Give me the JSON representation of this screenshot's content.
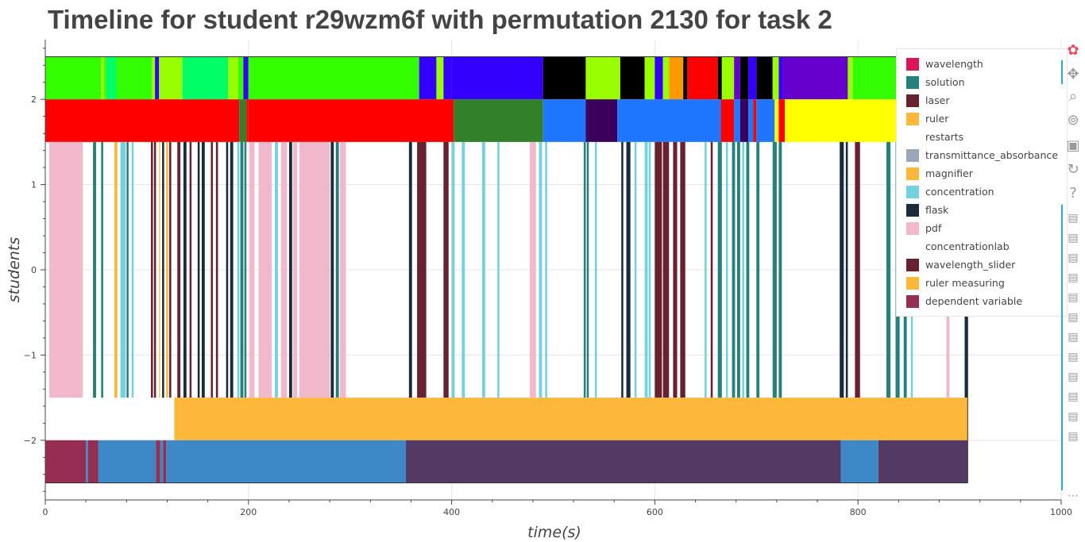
{
  "title": "Timeline for student r29wzm6f with permutation 2130 for task 2",
  "chart_data": {
    "type": "bar",
    "orientation": "horizontal",
    "xlabel": "time(s)",
    "ylabel": "students",
    "xlim": [
      0,
      1000
    ],
    "ylim": [
      -2.7,
      2.7
    ],
    "x_ticks": [
      0,
      200,
      400,
      600,
      800,
      1000
    ],
    "y_ticks": [
      -2,
      -1,
      0,
      1,
      2
    ],
    "grid": true,
    "legend_position": "top-right",
    "rows": [
      {
        "y0": 2.0,
        "y1": 2.5,
        "segments": [
          [
            0,
            55,
            "#33ff00"
          ],
          [
            55,
            58,
            "#99ff00"
          ],
          [
            58,
            60,
            "#33ff00"
          ],
          [
            60,
            70,
            "#00ff66"
          ],
          [
            70,
            90,
            "#33ff00"
          ],
          [
            90,
            105,
            "#33ff00"
          ],
          [
            105,
            108,
            "#99ff00"
          ],
          [
            108,
            112,
            "#3300ff"
          ],
          [
            112,
            115,
            "#99ff00"
          ],
          [
            115,
            135,
            "#99ff00"
          ],
          [
            135,
            180,
            "#00ff66"
          ],
          [
            180,
            190,
            "#99ff00"
          ],
          [
            190,
            195,
            "#33ff00"
          ],
          [
            195,
            200,
            "#3300ff"
          ],
          [
            200,
            368,
            "#33ff00"
          ],
          [
            368,
            385,
            "#3300ff"
          ],
          [
            385,
            392,
            "#99ff00"
          ],
          [
            392,
            400,
            "#3300ff"
          ],
          [
            400,
            490,
            "#3300ff"
          ],
          [
            490,
            532,
            "#000000"
          ],
          [
            532,
            566,
            "#99ff00"
          ],
          [
            566,
            590,
            "#000000"
          ],
          [
            590,
            600,
            "#99ff00"
          ],
          [
            600,
            608,
            "#3300ff"
          ],
          [
            608,
            614,
            "#99ff00"
          ],
          [
            614,
            628,
            "#ff9900"
          ],
          [
            628,
            632,
            "#000000"
          ],
          [
            632,
            662,
            "#ff0000"
          ],
          [
            662,
            666,
            "#000000"
          ],
          [
            666,
            678,
            "#99ff00"
          ],
          [
            678,
            684,
            "#6600cc"
          ],
          [
            684,
            692,
            "#000000"
          ],
          [
            692,
            700,
            "#3300ff"
          ],
          [
            700,
            716,
            "#000000"
          ],
          [
            716,
            722,
            "#99ff00"
          ],
          [
            722,
            726,
            "#3300ff"
          ],
          [
            726,
            790,
            "#6600cc"
          ],
          [
            790,
            795,
            "#99ff00"
          ],
          [
            795,
            808,
            "#33ff00"
          ],
          [
            808,
            842,
            "#33ff00"
          ],
          [
            842,
            860,
            "#ff9900"
          ],
          [
            860,
            870,
            "#000000"
          ],
          [
            870,
            888,
            "#33ff00"
          ],
          [
            888,
            895,
            "#000000"
          ],
          [
            895,
            908,
            "#ff0000"
          ]
        ]
      },
      {
        "y0": 1.5,
        "y1": 2.0,
        "segments": [
          [
            0,
            191,
            "#ff0000"
          ],
          [
            191,
            198,
            "#33802b"
          ],
          [
            198,
            200,
            "#ff0000"
          ],
          [
            200,
            402,
            "#ff0000"
          ],
          [
            402,
            490,
            "#33802b"
          ],
          [
            490,
            532,
            "#1f77ff"
          ],
          [
            532,
            563,
            "#3a005c"
          ],
          [
            563,
            665,
            "#1f77ff"
          ],
          [
            665,
            678,
            "#ff0000"
          ],
          [
            678,
            684,
            "#1f77ff"
          ],
          [
            684,
            692,
            "#3a005c"
          ],
          [
            692,
            697,
            "#1f77ff"
          ],
          [
            697,
            700,
            "#ff0000"
          ],
          [
            700,
            718,
            "#1f77ff"
          ],
          [
            718,
            722,
            "#ffff00"
          ],
          [
            722,
            728,
            "#ff0000"
          ],
          [
            728,
            908,
            "#ffff00"
          ]
        ]
      },
      {
        "y0": -1.5,
        "y1": 1.5,
        "segments": [
          [
            4,
            37,
            "#f0b8ca"
          ],
          [
            47,
            50,
            "#23807a"
          ],
          [
            55,
            57,
            "#23807a"
          ],
          [
            68,
            71,
            "#fdb83c"
          ],
          [
            74,
            79,
            "#74d1de"
          ],
          [
            80,
            82,
            "#23807a"
          ],
          [
            85,
            87,
            "#74d1de"
          ],
          [
            104,
            106,
            "#672131"
          ],
          [
            107,
            109,
            "#672131"
          ],
          [
            112,
            113,
            "#fdb83c"
          ],
          [
            115,
            117,
            "#1a2c3c"
          ],
          [
            119,
            121,
            "#fdb83c"
          ],
          [
            122,
            124,
            "#672131"
          ],
          [
            130,
            133,
            "#672131"
          ],
          [
            136,
            139,
            "#1a2c3c"
          ],
          [
            142,
            144,
            "#672131"
          ],
          [
            150,
            152,
            "#1a2c3c"
          ],
          [
            154,
            157,
            "#1a2c3c"
          ],
          [
            163,
            165,
            "#672131"
          ],
          [
            168,
            170,
            "#672131"
          ],
          [
            178,
            180,
            "#1a2c3c"
          ],
          [
            182,
            185,
            "#1a2c3c"
          ],
          [
            189,
            191,
            "#74d1de"
          ],
          [
            192,
            195,
            "#23807a"
          ],
          [
            196,
            198,
            "#23807a"
          ],
          [
            201,
            206,
            "#f0b8ca"
          ],
          [
            210,
            223,
            "#f0b8ca"
          ],
          [
            226,
            229,
            "#74d1de"
          ],
          [
            232,
            238,
            "#f0b8ca"
          ],
          [
            240,
            243,
            "#1a2c3c"
          ],
          [
            244,
            248,
            "#f0b8ca"
          ],
          [
            250,
            280,
            "#f0b8ca"
          ],
          [
            281,
            284,
            "#1a2c3c"
          ],
          [
            286,
            289,
            "#23807a"
          ],
          [
            290,
            296,
            "#f0b8ca"
          ],
          [
            358,
            361,
            "#1a2c3c"
          ],
          [
            366,
            375,
            "#672131"
          ],
          [
            392,
            397,
            "#672131"
          ],
          [
            400,
            403,
            "#74d1de"
          ],
          [
            410,
            413,
            "#74d1de"
          ],
          [
            430,
            433,
            "#74d1de"
          ],
          [
            445,
            447,
            "#74d1de"
          ],
          [
            477,
            483,
            "#f0b8ca"
          ],
          [
            486,
            489,
            "#74d1de"
          ],
          [
            492,
            494,
            "#74d1de"
          ],
          [
            530,
            532,
            "#23807a"
          ],
          [
            533,
            535,
            "#23807a"
          ],
          [
            541,
            543,
            "#74d1de"
          ],
          [
            567,
            569,
            "#1a2c3c"
          ],
          [
            572,
            576,
            "#1a2c3c"
          ],
          [
            580,
            582,
            "#74d1de"
          ],
          [
            590,
            593,
            "#74d1de"
          ],
          [
            594,
            596,
            "#74d1de"
          ],
          [
            600,
            607,
            "#672131"
          ],
          [
            608,
            614,
            "#672131"
          ],
          [
            618,
            622,
            "#672131"
          ],
          [
            625,
            630,
            "#672131"
          ],
          [
            649,
            651,
            "#74d1de"
          ],
          [
            655,
            657,
            "#672131"
          ],
          [
            662,
            666,
            "#23807a"
          ],
          [
            670,
            672,
            "#74d1de"
          ],
          [
            676,
            679,
            "#23807a"
          ],
          [
            681,
            684,
            "#23807a"
          ],
          [
            686,
            688,
            "#74d1de"
          ],
          [
            690,
            693,
            "#23807a"
          ],
          [
            700,
            703,
            "#23807a"
          ],
          [
            716,
            720,
            "#23807a"
          ],
          [
            722,
            725,
            "#23807a"
          ],
          [
            782,
            786,
            "#1a2c3c"
          ],
          [
            788,
            790,
            "#1a2c3c"
          ],
          [
            797,
            802,
            "#672131"
          ],
          [
            828,
            832,
            "#23807a"
          ],
          [
            837,
            841,
            "#23807a"
          ],
          [
            845,
            848,
            "#23807a"
          ],
          [
            852,
            854,
            "#74d1de"
          ],
          [
            887,
            890,
            "#f0b8ca"
          ],
          [
            905,
            908,
            "#1a2c3c"
          ]
        ]
      },
      {
        "y0": -2.0,
        "y1": -1.5,
        "segments": [
          [
            127,
            908,
            "#fdb83c"
          ]
        ]
      },
      {
        "y0": -2.5,
        "y1": -2.0,
        "segments": [
          [
            0,
            40,
            "#962e54"
          ],
          [
            40,
            42,
            "#3f88c7"
          ],
          [
            42,
            52,
            "#962e54"
          ],
          [
            52,
            109,
            "#3f88c7"
          ],
          [
            109,
            113,
            "#962e54"
          ],
          [
            113,
            116,
            "#3f88c7"
          ],
          [
            116,
            119,
            "#962e54"
          ],
          [
            119,
            355,
            "#3f88c7"
          ],
          [
            355,
            783,
            "#523a64"
          ],
          [
            783,
            820,
            "#3f88c7"
          ],
          [
            820,
            908,
            "#523a64"
          ]
        ]
      }
    ],
    "legend": [
      {
        "label": "wavelength",
        "color": "#dc1458"
      },
      {
        "label": "solution",
        "color": "#23807a"
      },
      {
        "label": "laser",
        "color": "#672131"
      },
      {
        "label": "ruler",
        "color": "#fdb83c"
      },
      {
        "label": "restarts",
        "color": "#ffffff"
      },
      {
        "label": "transmittance_absorbance",
        "color": "#9aa7b7"
      },
      {
        "label": "magnifier",
        "color": "#fdb83c"
      },
      {
        "label": "concentration",
        "color": "#74d1de"
      },
      {
        "label": "flask",
        "color": "#1a2c3c"
      },
      {
        "label": "pdf",
        "color": "#f0b8ca"
      },
      {
        "label": "concentrationlab",
        "color": "#ffffff"
      },
      {
        "label": "wavelength_slider",
        "color": "#672131"
      },
      {
        "label": "ruler measuring",
        "color": "#fdb83c"
      },
      {
        "label": "dependent variable",
        "color": "#962e54"
      }
    ]
  },
  "toolbar": [
    {
      "name": "bokeh-logo-icon",
      "glyph": "✿"
    },
    {
      "name": "pan-icon",
      "glyph": "✥"
    },
    {
      "name": "box-zoom-icon",
      "glyph": "⌕"
    },
    {
      "name": "wheel-zoom-icon",
      "glyph": "⊚"
    },
    {
      "name": "save-icon",
      "glyph": "▣"
    },
    {
      "name": "reset-icon",
      "glyph": "↻"
    },
    {
      "name": "help-icon",
      "glyph": "?"
    },
    {
      "name": "hover-icon",
      "glyph": "▤"
    },
    {
      "name": "hover-icon",
      "glyph": "▤"
    },
    {
      "name": "hover-icon",
      "glyph": "▤"
    },
    {
      "name": "hover-icon",
      "glyph": "▤"
    },
    {
      "name": "hover-icon",
      "glyph": "▤"
    },
    {
      "name": "hover-icon",
      "glyph": "▤"
    },
    {
      "name": "hover-icon",
      "glyph": "▤"
    },
    {
      "name": "hover-icon",
      "glyph": "▤"
    },
    {
      "name": "hover-icon",
      "glyph": "▤"
    },
    {
      "name": "hover-icon",
      "glyph": "▤"
    },
    {
      "name": "hover-icon",
      "glyph": "▤"
    },
    {
      "name": "hover-icon",
      "glyph": "▤"
    },
    {
      "name": "more-icon",
      "glyph": "⋯"
    }
  ]
}
